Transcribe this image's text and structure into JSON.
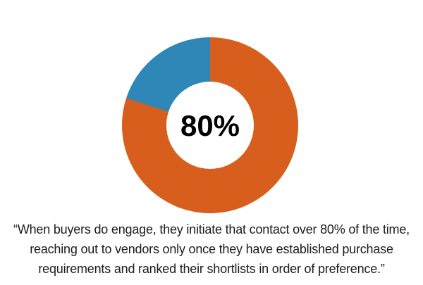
{
  "page": {
    "background": "#FFFFFF"
  },
  "chart_data": {
    "type": "pie",
    "subtype": "donut",
    "values": [
      80,
      20
    ],
    "colors": [
      "#D85E1E",
      "#2E87B7"
    ],
    "center_label": "80%",
    "center_label_color": "#000000",
    "start_angle_deg": 0,
    "direction": "clockwise",
    "hole_ratio": 0.5,
    "hole_color": "#FFFFFF",
    "legend": "none",
    "title": ""
  },
  "quote": {
    "lines": [
      "“When buyers do engage, they initiate that contact over 80% of the time,",
      "reaching out to vendors only once they have established purchase",
      "requirements and ranked their shortlists in order of preference.”"
    ],
    "full_text": "“When buyers do engage, they initiate that contact over 80% of the time, reaching out to vendors only once they have established purchase requirements and ranked their shortlists in order of preference.”",
    "text_color": "#1C1C1C"
  }
}
